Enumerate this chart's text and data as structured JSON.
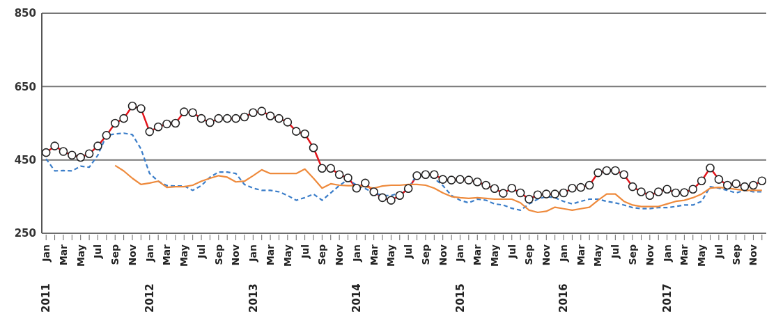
{
  "chart_data": {
    "type": "line",
    "x": [
      "2011-01",
      "2011-02",
      "2011-03",
      "2011-04",
      "2011-05",
      "2011-06",
      "2011-07",
      "2011-08",
      "2011-09",
      "2011-10",
      "2011-11",
      "2011-12",
      "2012-01",
      "2012-02",
      "2012-03",
      "2012-04",
      "2012-05",
      "2012-06",
      "2012-07",
      "2012-08",
      "2012-09",
      "2012-10",
      "2012-11",
      "2012-12",
      "2013-01",
      "2013-02",
      "2013-03",
      "2013-04",
      "2013-05",
      "2013-06",
      "2013-07",
      "2013-08",
      "2013-09",
      "2013-10",
      "2013-11",
      "2013-12",
      "2014-01",
      "2014-02",
      "2014-03",
      "2014-04",
      "2014-05",
      "2014-06",
      "2014-07",
      "2014-08",
      "2014-09",
      "2014-10",
      "2014-11",
      "2014-12",
      "2015-01",
      "2015-02",
      "2015-03",
      "2015-04",
      "2015-05",
      "2015-06",
      "2015-07",
      "2015-08",
      "2015-09",
      "2015-10",
      "2015-11",
      "2015-12",
      "2016-01",
      "2016-02",
      "2016-03",
      "2016-04",
      "2016-05",
      "2016-06",
      "2016-07",
      "2016-08",
      "2016-09",
      "2016-10",
      "2016-11",
      "2016-12",
      "2017-01",
      "2017-02",
      "2017-03",
      "2017-04",
      "2017-05",
      "2017-06",
      "2017-07",
      "2017-08",
      "2017-09",
      "2017-10",
      "2017-11",
      "2017-12"
    ],
    "series": [
      {
        "color": "#e3141b",
        "marker": "circle",
        "line_style": "solid",
        "values": [
          470,
          488,
          473,
          463,
          457,
          467,
          488,
          517,
          550,
          563,
          597,
          590,
          527,
          540,
          548,
          550,
          581,
          579,
          563,
          552,
          563,
          563,
          563,
          567,
          579,
          583,
          570,
          563,
          553,
          528,
          521,
          483,
          427,
          427,
          410,
          401,
          373,
          387,
          363,
          347,
          340,
          353,
          372,
          407,
          410,
          410,
          397,
          395,
          397,
          395,
          390,
          381,
          372,
          359,
          373,
          360,
          343,
          355,
          357,
          357,
          360,
          373,
          375,
          381,
          415,
          421,
          421,
          410,
          377,
          363,
          353,
          363,
          370,
          360,
          361,
          370,
          393,
          428,
          397,
          381,
          385,
          377,
          381,
          393
        ]
      },
      {
        "color": "#3a7dc9",
        "marker": "none",
        "line_style": "dashed",
        "values": [
          453,
          420,
          421,
          420,
          433,
          430,
          463,
          517,
          521,
          523,
          519,
          480,
          413,
          392,
          380,
          379,
          379,
          367,
          380,
          403,
          417,
          417,
          413,
          383,
          373,
          367,
          367,
          363,
          353,
          340,
          347,
          357,
          340,
          360,
          380,
          397,
          381,
          372,
          360,
          353,
          353,
          360,
          373,
          410,
          407,
          400,
          380,
          353,
          340,
          333,
          343,
          340,
          330,
          327,
          318,
          313,
          330,
          343,
          350,
          347,
          337,
          330,
          337,
          343,
          343,
          337,
          333,
          327,
          320,
          317,
          317,
          320,
          320,
          323,
          327,
          327,
          337,
          377,
          373,
          367,
          360,
          367,
          363,
          363
        ]
      },
      {
        "color": "#ee8a3c",
        "marker": "none",
        "line_style": "solid",
        "values": [
          null,
          null,
          null,
          null,
          null,
          null,
          null,
          null,
          435,
          420,
          400,
          383,
          387,
          392,
          375,
          377,
          377,
          381,
          392,
          400,
          407,
          403,
          390,
          392,
          407,
          423,
          413,
          413,
          413,
          413,
          425,
          400,
          373,
          385,
          381,
          380,
          380,
          377,
          373,
          379,
          381,
          381,
          383,
          383,
          381,
          373,
          360,
          350,
          347,
          345,
          347,
          345,
          343,
          343,
          343,
          333,
          313,
          307,
          310,
          321,
          317,
          313,
          317,
          321,
          340,
          357,
          357,
          337,
          327,
          323,
          323,
          323,
          330,
          337,
          340,
          347,
          357,
          373,
          375,
          373,
          370,
          367,
          367,
          367
        ]
      }
    ],
    "xlim": [
      "2010-12-16",
      "2017-12-16"
    ],
    "xticks": [
      {
        "value": "2011-01",
        "label": "Jan"
      },
      {
        "value": "2011-02",
        "label": null
      },
      {
        "value": "2011-03",
        "label": "Mar"
      },
      {
        "value": "2011-04",
        "label": null
      },
      {
        "value": "2011-05",
        "label": "May"
      },
      {
        "value": "2011-06",
        "label": null
      },
      {
        "value": "2011-07",
        "label": "Jul"
      },
      {
        "value": "2011-08",
        "label": null
      },
      {
        "value": "2011-09",
        "label": "Sep"
      },
      {
        "value": "2011-10",
        "label": null
      },
      {
        "value": "2011-11",
        "label": "Nov"
      },
      {
        "value": "2011-12",
        "label": null
      },
      {
        "value": "2012-01",
        "label": "Jan"
      },
      {
        "value": "2012-02",
        "label": null
      },
      {
        "value": "2012-03",
        "label": "Mar"
      },
      {
        "value": "2012-04",
        "label": null
      },
      {
        "value": "2012-05",
        "label": "May"
      },
      {
        "value": "2012-06",
        "label": null
      },
      {
        "value": "2012-07",
        "label": "Jul"
      },
      {
        "value": "2012-08",
        "label": null
      },
      {
        "value": "2012-09",
        "label": "Sep"
      },
      {
        "value": "2012-10",
        "label": null
      },
      {
        "value": "2012-11",
        "label": "Nov"
      },
      {
        "value": "2012-12",
        "label": null
      },
      {
        "value": "2013-01",
        "label": "Jan"
      },
      {
        "value": "2013-02",
        "label": null
      },
      {
        "value": "2013-03",
        "label": "Mar"
      },
      {
        "value": "2013-04",
        "label": null
      },
      {
        "value": "2013-05",
        "label": "May"
      },
      {
        "value": "2013-06",
        "label": null
      },
      {
        "value": "2013-07",
        "label": "Jul"
      },
      {
        "value": "2013-08",
        "label": null
      },
      {
        "value": "2013-09",
        "label": "Sep"
      },
      {
        "value": "2013-10",
        "label": null
      },
      {
        "value": "2013-11",
        "label": "Nov"
      },
      {
        "value": "2013-12",
        "label": null
      },
      {
        "value": "2014-01",
        "label": "Jan"
      },
      {
        "value": "2014-02",
        "label": null
      },
      {
        "value": "2014-03",
        "label": "Mar"
      },
      {
        "value": "2014-04",
        "label": null
      },
      {
        "value": "2014-05",
        "label": "May"
      },
      {
        "value": "2014-06",
        "label": null
      },
      {
        "value": "2014-07",
        "label": "Jul"
      },
      {
        "value": "2014-08",
        "label": null
      },
      {
        "value": "2014-09",
        "label": "Sep"
      },
      {
        "value": "2014-10",
        "label": null
      },
      {
        "value": "2014-11",
        "label": "Nov"
      },
      {
        "value": "2014-12",
        "label": null
      },
      {
        "value": "2015-01",
        "label": "Jan"
      },
      {
        "value": "2015-02",
        "label": null
      },
      {
        "value": "2015-03",
        "label": "Mar"
      },
      {
        "value": "2015-04",
        "label": null
      },
      {
        "value": "2015-05",
        "label": "May"
      },
      {
        "value": "2015-06",
        "label": null
      },
      {
        "value": "2015-07",
        "label": "Jul"
      },
      {
        "value": "2015-08",
        "label": null
      },
      {
        "value": "2015-09",
        "label": "Sep"
      },
      {
        "value": "2015-10",
        "label": null
      },
      {
        "value": "2015-11",
        "label": "Nov"
      },
      {
        "value": "2015-12",
        "label": null
      },
      {
        "value": "2016-01",
        "label": "Jan"
      },
      {
        "value": "2016-02",
        "label": null
      },
      {
        "value": "2016-03",
        "label": "Mar"
      },
      {
        "value": "2016-04",
        "label": null
      },
      {
        "value": "2016-05",
        "label": "May"
      },
      {
        "value": "2016-06",
        "label": null
      },
      {
        "value": "2016-07",
        "label": "Jul"
      },
      {
        "value": "2016-08",
        "label": null
      },
      {
        "value": "2016-09",
        "label": "Sep"
      },
      {
        "value": "2016-10",
        "label": null
      },
      {
        "value": "2016-11",
        "label": "Nov"
      },
      {
        "value": "2016-12",
        "label": null
      },
      {
        "value": "2017-01",
        "label": "Jan"
      },
      {
        "value": "2017-02",
        "label": null
      },
      {
        "value": "2017-03",
        "label": "Mar"
      },
      {
        "value": "2017-04",
        "label": null
      },
      {
        "value": "2017-05",
        "label": "May"
      },
      {
        "value": "2017-06",
        "label": null
      },
      {
        "value": "2017-07",
        "label": "Jul"
      },
      {
        "value": "2017-08",
        "label": null
      },
      {
        "value": "2017-09",
        "label": "Sep"
      },
      {
        "value": "2017-10",
        "label": null
      },
      {
        "value": "2017-11",
        "label": "Nov"
      },
      {
        "value": "2017-12",
        "label": null
      }
    ],
    "ylim": [
      250,
      850
    ],
    "yticks": [
      250,
      450,
      650,
      850
    ],
    "grid": "y",
    "legend": false,
    "annotations": [
      "2011",
      "2012",
      "2013",
      "2014",
      "2015",
      "2016",
      "2017"
    ]
  }
}
